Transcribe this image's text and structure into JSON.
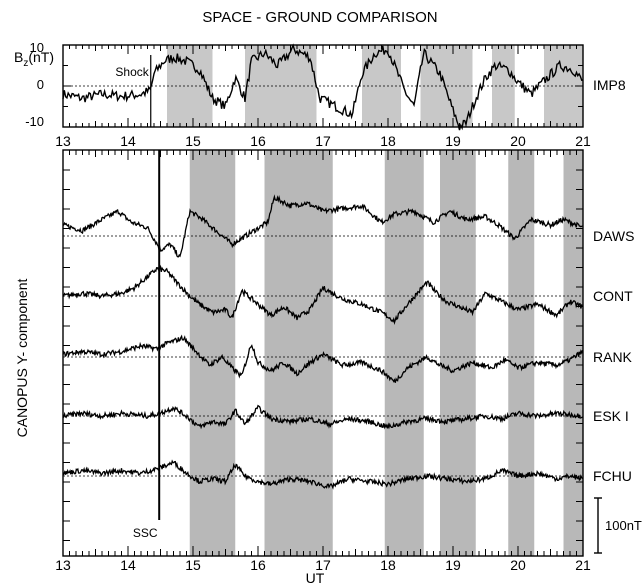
{
  "chart_data": [
    {
      "type": "line",
      "title": "SPACE - GROUND COMPARISON",
      "ylabel_main": "B",
      "ylabel_sub": "z",
      "ylabel_unit": "(nT)",
      "series": [
        {
          "name": "IMP8"
        }
      ],
      "annotation": "Shock",
      "annotation_x": 14.35,
      "xlim": [
        13,
        21
      ],
      "ylim": [
        -10,
        10
      ],
      "xticks": [
        "13",
        "14",
        "15",
        "16",
        "17",
        "18",
        "19",
        "20",
        "21"
      ],
      "yticks": [
        "10",
        "0",
        "-10"
      ],
      "shaded_intervals": [
        [
          14.6,
          15.3
        ],
        [
          15.8,
          16.9
        ],
        [
          17.6,
          18.2
        ],
        [
          18.5,
          19.3
        ],
        [
          19.6,
          19.95
        ],
        [
          20.4,
          21.0
        ]
      ],
      "keypoints": [
        [
          13.0,
          -2
        ],
        [
          13.3,
          -3
        ],
        [
          13.6,
          -2
        ],
        [
          13.9,
          -2.5
        ],
        [
          14.2,
          -2
        ],
        [
          14.35,
          -1
        ],
        [
          14.4,
          3
        ],
        [
          14.55,
          6
        ],
        [
          14.7,
          7
        ],
        [
          14.9,
          6
        ],
        [
          15.1,
          4
        ],
        [
          15.3,
          -3
        ],
        [
          15.5,
          -5
        ],
        [
          15.65,
          2
        ],
        [
          15.8,
          -3
        ],
        [
          15.9,
          6
        ],
        [
          16.1,
          8
        ],
        [
          16.3,
          5
        ],
        [
          16.55,
          9
        ],
        [
          16.8,
          7
        ],
        [
          16.95,
          -3
        ],
        [
          17.2,
          -5
        ],
        [
          17.45,
          -7
        ],
        [
          17.6,
          3
        ],
        [
          17.8,
          8
        ],
        [
          18.0,
          9
        ],
        [
          18.25,
          -1
        ],
        [
          18.4,
          -5
        ],
        [
          18.55,
          8
        ],
        [
          18.65,
          6
        ],
        [
          18.8,
          3
        ],
        [
          19.0,
          -6
        ],
        [
          19.1,
          -10
        ],
        [
          19.2,
          -9
        ],
        [
          19.35,
          -3
        ],
        [
          19.5,
          2
        ],
        [
          19.65,
          5
        ],
        [
          19.85,
          4
        ],
        [
          20.0,
          1
        ],
        [
          20.2,
          -2
        ],
        [
          20.45,
          2
        ],
        [
          20.65,
          5
        ],
        [
          20.85,
          4
        ],
        [
          21.0,
          1
        ]
      ]
    },
    {
      "type": "line",
      "ylabel": "CANOPUS  Y- component",
      "xlabel": "UT",
      "xlim": [
        13,
        21
      ],
      "xticks": [
        "13",
        "14",
        "15",
        "16",
        "17",
        "18",
        "19",
        "20",
        "21"
      ],
      "annotation": "SSC",
      "annotation_x": 14.48,
      "scale_bar_label": "100nT",
      "shaded_intervals": [
        [
          14.95,
          15.65
        ],
        [
          16.1,
          17.15
        ],
        [
          17.95,
          18.55
        ],
        [
          18.8,
          19.35
        ],
        [
          19.85,
          20.25
        ],
        [
          20.7,
          21.0
        ]
      ],
      "series": [
        {
          "name": "DAWS",
          "keypoints": [
            [
              13.0,
              20
            ],
            [
              13.3,
              10
            ],
            [
              13.6,
              30
            ],
            [
              13.85,
              45
            ],
            [
              14.05,
              25
            ],
            [
              14.3,
              15
            ],
            [
              14.5,
              -25
            ],
            [
              14.65,
              -15
            ],
            [
              14.8,
              -40
            ],
            [
              14.95,
              45
            ],
            [
              15.15,
              30
            ],
            [
              15.35,
              10
            ],
            [
              15.5,
              -5
            ],
            [
              15.6,
              -15
            ],
            [
              16.15,
              25
            ],
            [
              16.25,
              70
            ],
            [
              16.5,
              55
            ],
            [
              16.75,
              60
            ],
            [
              17.0,
              45
            ],
            [
              17.3,
              50
            ],
            [
              17.6,
              55
            ],
            [
              17.9,
              25
            ],
            [
              18.1,
              40
            ],
            [
              18.4,
              45
            ],
            [
              18.7,
              25
            ],
            [
              18.95,
              45
            ],
            [
              19.2,
              30
            ],
            [
              19.5,
              35
            ],
            [
              19.7,
              20
            ],
            [
              19.85,
              5
            ],
            [
              19.95,
              -5
            ],
            [
              20.2,
              30
            ],
            [
              20.5,
              20
            ],
            [
              20.7,
              30
            ],
            [
              21.0,
              15
            ]
          ]
        },
        {
          "name": "CONT",
          "keypoints": [
            [
              13.0,
              0
            ],
            [
              13.3,
              5
            ],
            [
              13.6,
              0
            ],
            [
              13.9,
              5
            ],
            [
              14.1,
              15
            ],
            [
              14.3,
              35
            ],
            [
              14.45,
              50
            ],
            [
              14.6,
              45
            ],
            [
              14.75,
              25
            ],
            [
              14.95,
              0
            ],
            [
              15.1,
              -15
            ],
            [
              15.3,
              -30
            ],
            [
              15.5,
              -25
            ],
            [
              15.6,
              -40
            ],
            [
              15.75,
              10
            ],
            [
              16.0,
              -15
            ],
            [
              16.2,
              -35
            ],
            [
              16.4,
              -20
            ],
            [
              16.6,
              -40
            ],
            [
              16.8,
              -25
            ],
            [
              17.0,
              15
            ],
            [
              17.3,
              -5
            ],
            [
              17.6,
              -15
            ],
            [
              17.9,
              -30
            ],
            [
              18.1,
              -45
            ],
            [
              18.3,
              -15
            ],
            [
              18.6,
              25
            ],
            [
              18.75,
              5
            ],
            [
              18.9,
              -10
            ],
            [
              19.1,
              -20
            ],
            [
              19.3,
              -30
            ],
            [
              19.5,
              5
            ],
            [
              19.75,
              -10
            ],
            [
              20.0,
              -25
            ],
            [
              20.3,
              -15
            ],
            [
              20.6,
              -35
            ],
            [
              20.8,
              -10
            ],
            [
              21.0,
              -20
            ]
          ]
        },
        {
          "name": "RANK",
          "keypoints": [
            [
              13.0,
              5
            ],
            [
              13.3,
              10
            ],
            [
              13.6,
              5
            ],
            [
              13.9,
              10
            ],
            [
              14.2,
              20
            ],
            [
              14.45,
              15
            ],
            [
              14.6,
              25
            ],
            [
              14.85,
              35
            ],
            [
              15.05,
              10
            ],
            [
              15.25,
              -15
            ],
            [
              15.45,
              0
            ],
            [
              15.6,
              -20
            ],
            [
              15.75,
              -35
            ],
            [
              15.9,
              25
            ],
            [
              16.0,
              -10
            ],
            [
              16.2,
              -25
            ],
            [
              16.4,
              -10
            ],
            [
              16.6,
              -30
            ],
            [
              16.8,
              -10
            ],
            [
              17.0,
              5
            ],
            [
              17.3,
              -15
            ],
            [
              17.6,
              -10
            ],
            [
              17.9,
              -25
            ],
            [
              18.1,
              -45
            ],
            [
              18.3,
              -20
            ],
            [
              18.6,
              0
            ],
            [
              18.8,
              -15
            ],
            [
              19.0,
              -25
            ],
            [
              19.3,
              -10
            ],
            [
              19.6,
              -20
            ],
            [
              19.8,
              -5
            ],
            [
              20.0,
              -20
            ],
            [
              20.3,
              -10
            ],
            [
              20.6,
              -15
            ],
            [
              20.8,
              -5
            ],
            [
              21.0,
              10
            ]
          ]
        },
        {
          "name": "ESK I",
          "keypoints": [
            [
              13.0,
              0
            ],
            [
              13.3,
              5
            ],
            [
              13.6,
              0
            ],
            [
              13.9,
              5
            ],
            [
              14.3,
              0
            ],
            [
              14.5,
              5
            ],
            [
              14.7,
              15
            ],
            [
              14.9,
              0
            ],
            [
              15.1,
              -20
            ],
            [
              15.3,
              -10
            ],
            [
              15.5,
              -15
            ],
            [
              15.65,
              10
            ],
            [
              15.8,
              -15
            ],
            [
              16.0,
              15
            ],
            [
              16.2,
              -5
            ],
            [
              16.5,
              -10
            ],
            [
              16.8,
              -5
            ],
            [
              17.1,
              -15
            ],
            [
              17.4,
              -5
            ],
            [
              17.7,
              -10
            ],
            [
              18.0,
              -20
            ],
            [
              18.3,
              -10
            ],
            [
              18.6,
              -5
            ],
            [
              18.9,
              -10
            ],
            [
              19.2,
              -5
            ],
            [
              19.5,
              0
            ],
            [
              19.75,
              -5
            ],
            [
              20.0,
              5
            ],
            [
              20.3,
              0
            ],
            [
              20.6,
              5
            ],
            [
              21.0,
              0
            ]
          ]
        },
        {
          "name": "FCHU",
          "keypoints": [
            [
              13.0,
              5
            ],
            [
              13.3,
              10
            ],
            [
              13.6,
              5
            ],
            [
              13.9,
              10
            ],
            [
              14.2,
              5
            ],
            [
              14.5,
              15
            ],
            [
              14.7,
              25
            ],
            [
              14.9,
              5
            ],
            [
              15.1,
              -10
            ],
            [
              15.3,
              -5
            ],
            [
              15.5,
              -10
            ],
            [
              15.65,
              20
            ],
            [
              15.8,
              0
            ],
            [
              16.0,
              -10
            ],
            [
              16.2,
              -15
            ],
            [
              16.5,
              -5
            ],
            [
              16.8,
              -10
            ],
            [
              17.1,
              -20
            ],
            [
              17.4,
              -5
            ],
            [
              17.7,
              -10
            ],
            [
              18.0,
              -15
            ],
            [
              18.3,
              -5
            ],
            [
              18.6,
              0
            ],
            [
              18.9,
              -5
            ],
            [
              19.2,
              -10
            ],
            [
              19.5,
              -5
            ],
            [
              19.75,
              10
            ],
            [
              20.0,
              0
            ],
            [
              20.3,
              5
            ],
            [
              20.6,
              -5
            ],
            [
              20.8,
              0
            ],
            [
              21.0,
              -5
            ]
          ]
        }
      ]
    }
  ]
}
